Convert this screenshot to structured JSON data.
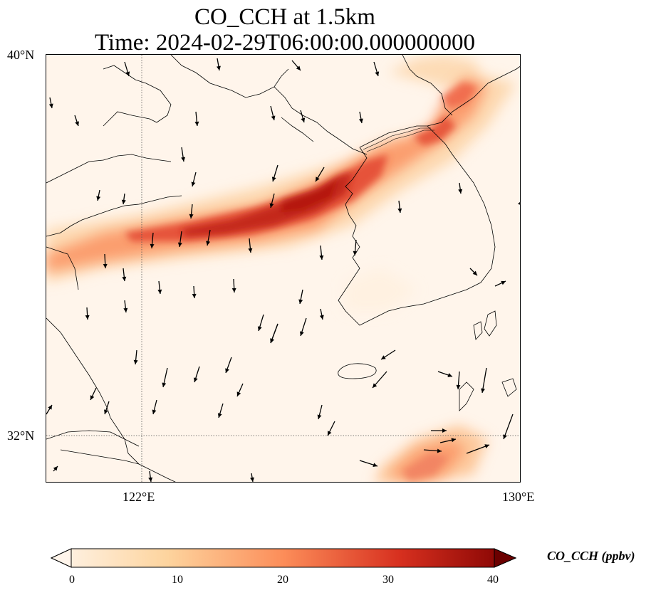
{
  "title": {
    "line1": "CO_CCH at 1.5km",
    "line2": "Time: 2024-02-29T06:00:00.000000000"
  },
  "map": {
    "extent_lon": [
      120,
      130
    ],
    "extent_lat": [
      31,
      40
    ],
    "lat_labels": [
      "40°N",
      "32°N"
    ],
    "lon_labels": [
      "122°E",
      "130°E"
    ],
    "gridline_lon": 122,
    "gridline_lat": 32,
    "field": "CO_CCH",
    "plume_color_max": "#b81d13",
    "background_color": "#fff5eb"
  },
  "colorbar": {
    "label": "CO_CCH (ppbv)",
    "ticks": [
      "0",
      "10",
      "20",
      "30",
      "40"
    ],
    "range": [
      0,
      40
    ],
    "colormap": "OrRd-like",
    "colors": [
      "#fff5eb",
      "#fdd49e",
      "#fc8d59",
      "#d7301f",
      "#7f0000"
    ]
  }
}
